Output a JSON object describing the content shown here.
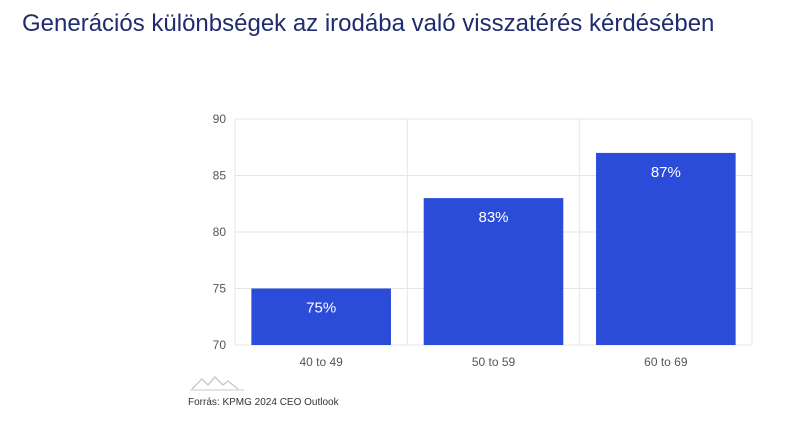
{
  "title": "Generációs különbségek az irodába való visszatérés kérdésében",
  "source": "Forrás: KPMG 2024 CEO Outlook",
  "colors": {
    "bar": "#2b4bd9",
    "title": "#1f2d6e",
    "grid": "#e6e6e6"
  },
  "logo": "mountain-logo-icon",
  "chart_data": {
    "type": "bar",
    "categories": [
      "40 to 49",
      "50 to 59",
      "60 to 69"
    ],
    "values": [
      75,
      83,
      87
    ],
    "data_labels": [
      "75%",
      "83%",
      "87%"
    ],
    "ylim": [
      70,
      90
    ],
    "yticks": [
      70,
      75,
      80,
      85,
      90
    ],
    "grid": true
  }
}
